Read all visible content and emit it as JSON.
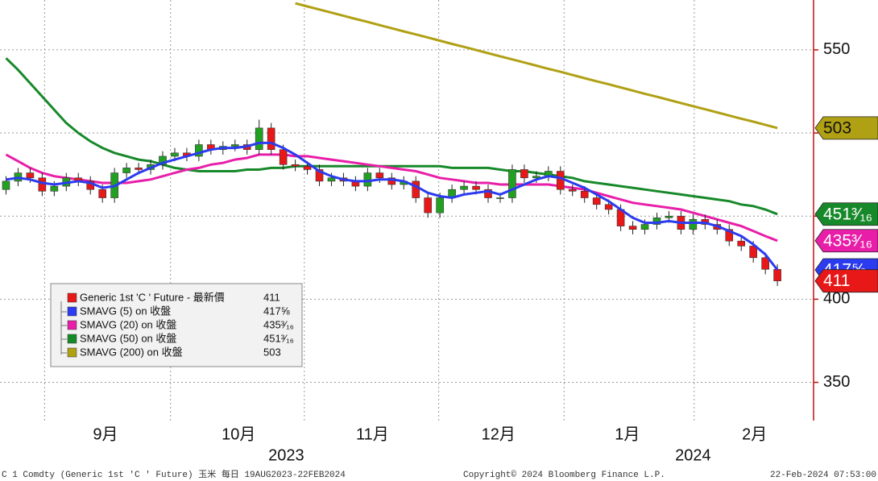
{
  "chart_data": {
    "type": "candlestick",
    "x": [
      0,
      2,
      4,
      6,
      8,
      10,
      12,
      14,
      16,
      18,
      20,
      22,
      24,
      26,
      28,
      30,
      32,
      34,
      36,
      38,
      40,
      42,
      44,
      46,
      48,
      50,
      52,
      54,
      56,
      58,
      60,
      62,
      64,
      66,
      68,
      70,
      72,
      74,
      76,
      78,
      80,
      82,
      84,
      86,
      88,
      90,
      92,
      94,
      96,
      98,
      100,
      102,
      104,
      106,
      108,
      110,
      112,
      114,
      116,
      118,
      120,
      122,
      124,
      126,
      128
    ],
    "xlim": [
      -1,
      134
    ],
    "xgrid": [
      6.4,
      27.3,
      49.5,
      71.8,
      92.6,
      114.2
    ],
    "xticks": [
      {
        "value": 16.5,
        "label": "9月"
      },
      {
        "value": 38.6,
        "label": "10月"
      },
      {
        "value": 60.8,
        "label": "11月"
      },
      {
        "value": 81.7,
        "label": "12月"
      },
      {
        "value": 103.1,
        "label": "1月"
      },
      {
        "value": 124.2,
        "label": "2月"
      }
    ],
    "years": [
      {
        "value": 46.5,
        "label": "2023"
      },
      {
        "value": 114.0,
        "label": "2024"
      }
    ],
    "ylim": [
      327,
      580
    ],
    "yticks": [
      350,
      400,
      450,
      500,
      550
    ],
    "grid": true,
    "candles": {
      "name": "Generic 1st 'C ' Future - 最新價",
      "color": "#e81818",
      "up_color": "#22a022",
      "open": [
        466,
        471,
        476,
        473,
        465,
        468,
        473,
        471,
        466,
        461,
        476,
        479,
        478,
        481,
        486,
        488,
        486,
        493,
        490,
        492,
        493,
        490,
        503,
        490,
        481,
        480,
        478,
        471,
        473,
        471,
        468,
        476,
        473,
        469,
        471,
        461,
        452,
        461,
        466,
        468,
        466,
        461,
        461,
        478,
        473,
        474,
        477,
        466,
        465,
        461,
        457,
        454,
        444,
        442,
        445,
        449,
        450,
        442,
        448,
        445,
        442,
        435,
        432,
        425,
        418
      ],
      "high": [
        474,
        479,
        479,
        476,
        471,
        476,
        476,
        474,
        469,
        479,
        482,
        482,
        484,
        489,
        491,
        491,
        496,
        496,
        495,
        496,
        496,
        508,
        506,
        493,
        484,
        483,
        481,
        476,
        476,
        474,
        479,
        479,
        476,
        474,
        474,
        464,
        464,
        469,
        471,
        471,
        469,
        464,
        481,
        481,
        477,
        480,
        480,
        469,
        468,
        464,
        460,
        457,
        447,
        448,
        452,
        453,
        453,
        451,
        451,
        448,
        445,
        438,
        435,
        428,
        421
      ],
      "low": [
        463,
        468,
        470,
        462,
        462,
        465,
        468,
        463,
        458,
        458,
        473,
        475,
        475,
        478,
        483,
        483,
        483,
        487,
        487,
        489,
        487,
        487,
        487,
        478,
        477,
        475,
        468,
        468,
        468,
        465,
        465,
        470,
        466,
        466,
        458,
        449,
        449,
        458,
        463,
        463,
        458,
        458,
        458,
        470,
        470,
        471,
        463,
        462,
        458,
        454,
        451,
        441,
        439,
        439,
        442,
        446,
        439,
        439,
        442,
        439,
        432,
        429,
        422,
        415,
        408
      ],
      "close": [
        471,
        476,
        473,
        465,
        468,
        473,
        471,
        466,
        461,
        476,
        479,
        478,
        481,
        486,
        488,
        486,
        493,
        490,
        492,
        493,
        490,
        503,
        490,
        481,
        480,
        478,
        471,
        473,
        471,
        468,
        476,
        473,
        469,
        471,
        461,
        452,
        461,
        466,
        468,
        466,
        461,
        461,
        478,
        473,
        474,
        477,
        466,
        465,
        461,
        457,
        454,
        444,
        442,
        445,
        449,
        450,
        442,
        448,
        445,
        442,
        435,
        432,
        425,
        418,
        411
      ]
    },
    "series": [
      {
        "name": "SMAVG (5)  on 收盤",
        "color": "#2b3bef",
        "last_label": "417⅝",
        "values": [
          472,
          473,
          472,
          470,
          469,
          470,
          471,
          470,
          467,
          468,
          472,
          476,
          479,
          482,
          484,
          486,
          488,
          490,
          491,
          491,
          492,
          494,
          494,
          491,
          487,
          482,
          477,
          474,
          472,
          471,
          471,
          472,
          472,
          471,
          468,
          464,
          462,
          461,
          463,
          464,
          465,
          463,
          466,
          469,
          472,
          474,
          473,
          470,
          467,
          463,
          459,
          454,
          449,
          446,
          446,
          447,
          446,
          446,
          446,
          444,
          441,
          438,
          433,
          427,
          417.625
        ]
      },
      {
        "name": "SMAVG (20)  on 收盤",
        "color": "#e81ea8",
        "last_label": "435³⁄₁₆",
        "values": [
          487,
          483,
          479,
          476,
          474,
          473,
          472,
          471,
          470,
          470,
          470,
          471,
          472,
          474,
          476,
          478,
          479,
          481,
          482,
          484,
          485,
          487,
          487,
          487,
          486,
          486,
          485,
          484,
          483,
          482,
          481,
          480,
          479,
          478,
          477,
          475,
          473,
          472,
          471,
          470,
          470,
          469,
          469,
          469,
          469,
          469,
          468,
          467,
          466,
          464,
          462,
          460,
          458,
          457,
          456,
          455,
          454,
          452,
          450,
          448,
          446,
          444,
          441,
          438,
          435.1875
        ]
      },
      {
        "name": "SMAVG (50)  on 收盤",
        "color": "#17892a",
        "last_label": "451³⁄₁₆",
        "values": [
          545,
          538,
          530,
          522,
          514,
          506,
          500,
          495,
          491,
          488,
          486,
          484,
          483,
          481,
          479,
          478,
          477,
          477,
          477,
          477,
          478,
          478,
          479,
          479,
          480,
          480,
          480,
          480,
          480,
          480,
          480,
          480,
          480,
          480,
          480,
          480,
          480,
          479,
          479,
          479,
          479,
          478,
          477,
          477,
          476,
          475,
          474,
          473,
          471,
          470,
          469,
          468,
          467,
          466,
          465,
          464,
          463,
          462,
          461,
          460,
          459,
          457,
          456,
          454,
          451.1875
        ]
      },
      {
        "name": "SMAVG (200)  on 收盤",
        "color": "#b0a014",
        "values": [
          null,
          null,
          null,
          null,
          null,
          null,
          null,
          null,
          null,
          null,
          null,
          null,
          null,
          null,
          null,
          null,
          null,
          null,
          null,
          null,
          null,
          null,
          null,
          null,
          578,
          576.1,
          574.3,
          572.4,
          570.5,
          568.6,
          566.8,
          564.9,
          563,
          561.1,
          559.3,
          557.4,
          555.5,
          553.6,
          551.8,
          549.9,
          548,
          546.1,
          544.3,
          542.4,
          540.5,
          538.6,
          536.8,
          534.9,
          533,
          531.1,
          529.3,
          527.4,
          525.5,
          523.6,
          521.8,
          519.9,
          518,
          516.1,
          514.3,
          512.4,
          510.5,
          508.6,
          506.8,
          504.9,
          503
        ]
      }
    ],
    "footer": {
      "left": "C 1 Comdty (Generic 1st 'C ' Future) 玉米  每日 19AUG2023-22FEB2024",
      "center": "Copyright© 2024 Bloomberg Finance L.P.",
      "right": "22-Feb-2024 07:53:00"
    }
  }
}
